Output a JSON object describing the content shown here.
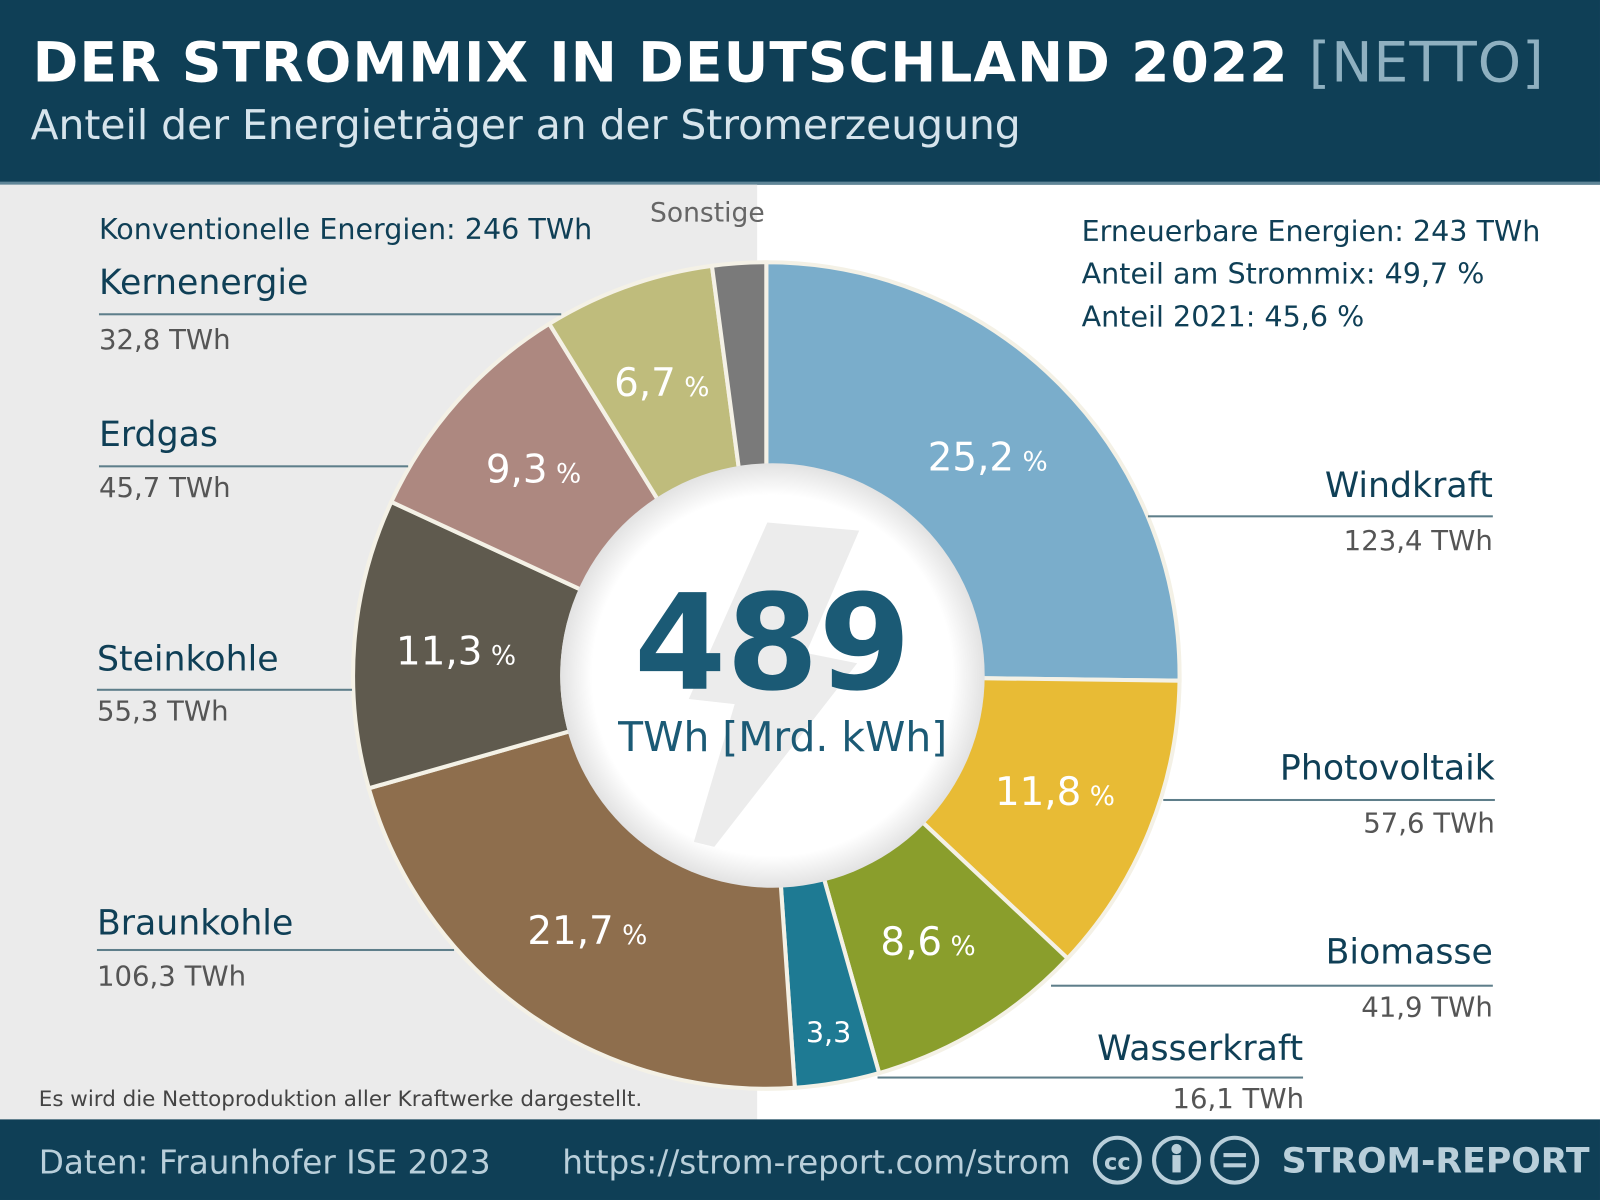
{
  "header": {
    "title": "DER STROMMIX IN DEUTSCHLAND 2022",
    "title_suffix": "[NETTO]",
    "subtitle": "Anteil der Energieträger an der Stromerzeugung"
  },
  "left_block": {
    "title": "Konventionelle Energien: 246 TWh"
  },
  "right_block": {
    "line1": "Erneuerbare Energien: 243 TWh",
    "line2": "Anteil am Strommix: 49,7 %",
    "line3": "Anteil 2021: 45,6 %"
  },
  "center": {
    "total": "489",
    "unit": "TWh [Mrd. kWh]"
  },
  "note": "Es wird die Nettoproduktion aller Kraftwerke dargestellt.",
  "footer": {
    "source": "Daten: Fraunhofer ISE 2023",
    "url": "https://strom-report.com/strom",
    "brand": "STROM-REPORT",
    "license_icons": [
      "cc-icon",
      "by-icon",
      "nd-icon"
    ]
  },
  "colors": {
    "header": "#0f3f56",
    "accent": "#1b5a75"
  },
  "chart_data": {
    "type": "pie",
    "donut": true,
    "title": "DER STROMMIX IN DEUTSCHLAND 2022 [NETTO]",
    "unit": "TWh",
    "total": 489,
    "slices": [
      {
        "name": "Windkraft",
        "percent": 25.2,
        "percent_label": "25,2",
        "twh": "123,4 TWh",
        "color": "#7aadcb"
      },
      {
        "name": "Photovoltaik",
        "percent": 11.8,
        "percent_label": "11,8",
        "twh": "57,6 TWh",
        "color": "#e8bb35"
      },
      {
        "name": "Biomasse",
        "percent": 8.6,
        "percent_label": "8,6",
        "twh": "41,9 TWh",
        "color": "#8a9e2c"
      },
      {
        "name": "Wasserkraft",
        "percent": 3.3,
        "percent_label": "3,3",
        "twh": "16,1 TWh",
        "color": "#1e7a93"
      },
      {
        "name": "Braunkohle",
        "percent": 21.7,
        "percent_label": "21,7",
        "twh": "106,3 TWh",
        "color": "#8e6e4d"
      },
      {
        "name": "Steinkohle",
        "percent": 11.3,
        "percent_label": "11,3",
        "twh": "55,3 TWh",
        "color": "#5f5a4e"
      },
      {
        "name": "Erdgas",
        "percent": 9.3,
        "percent_label": "9,3",
        "twh": "45,7 TWh",
        "color": "#ad8880"
      },
      {
        "name": "Kernenergie",
        "percent": 6.7,
        "percent_label": "6,7",
        "twh": "32,8 TWh",
        "color": "#bfbc7c"
      },
      {
        "name": "Sonstige",
        "percent": 2.1,
        "color": "#7a7a7a"
      }
    ]
  }
}
